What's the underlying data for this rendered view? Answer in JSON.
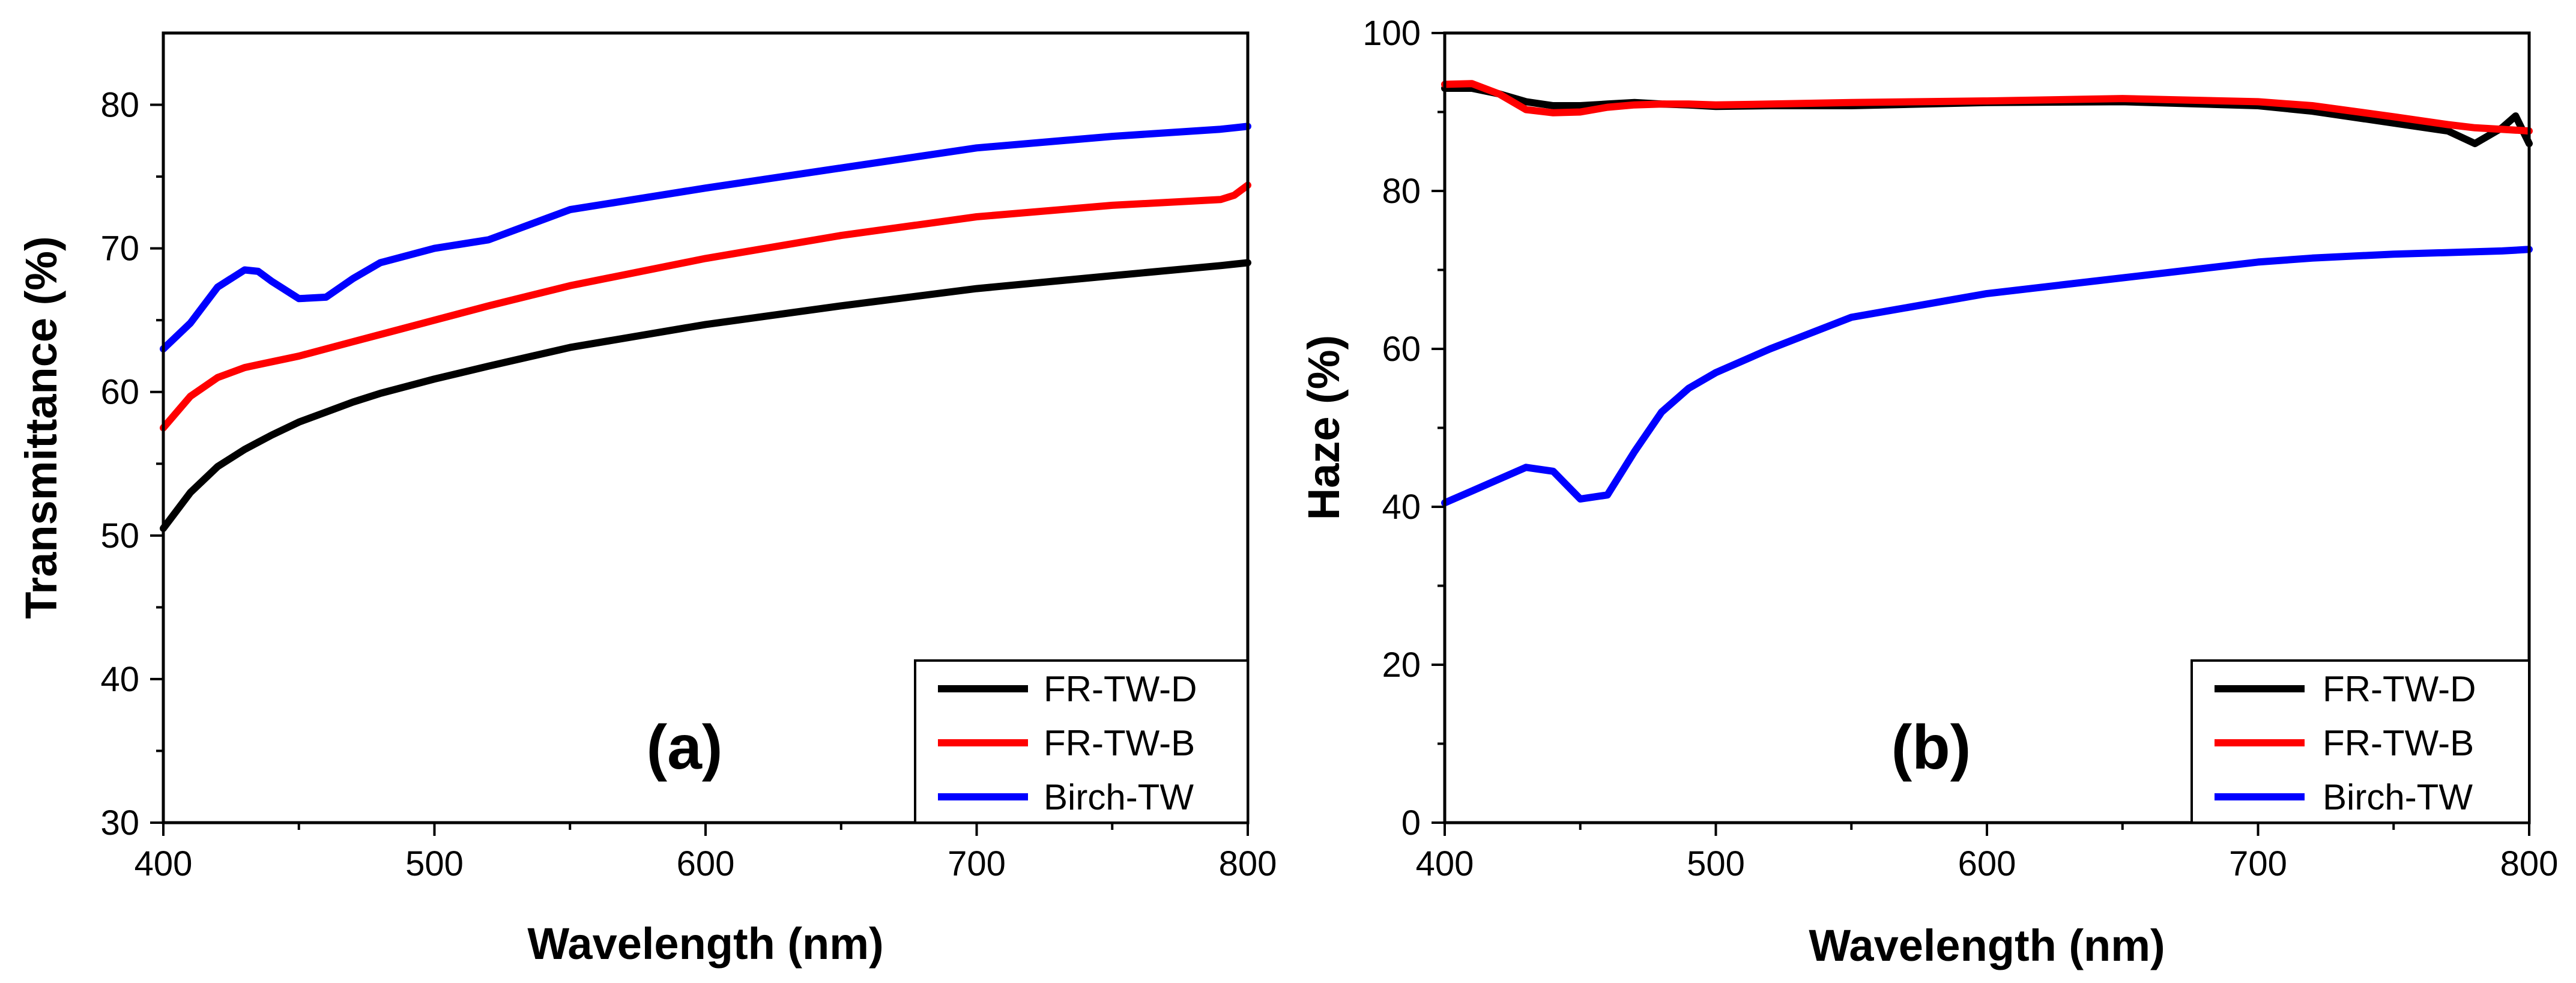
{
  "colors": {
    "FR-TW-D": "#000000",
    "FR-TW-B": "#ff0000",
    "Birch-TW": "#0000ff"
  },
  "chart_data": [
    {
      "type": "line",
      "panel_label": "(a)",
      "title": "",
      "xlabel": "Wavelength (nm)",
      "ylabel": "Transmittance (%)",
      "xlim": [
        400,
        800
      ],
      "ylim": [
        30,
        85
      ],
      "xticks": [
        400,
        500,
        600,
        700,
        800
      ],
      "yticks": [
        30,
        40,
        50,
        60,
        70,
        80
      ],
      "grid": false,
      "legend_position": "bottom-right",
      "x": [
        400,
        410,
        420,
        430,
        435,
        440,
        450,
        460,
        470,
        480,
        500,
        520,
        550,
        600,
        650,
        700,
        750,
        790,
        795,
        800
      ],
      "series": [
        {
          "name": "FR-TW-D",
          "values": [
            50.5,
            53.0,
            54.8,
            56.0,
            56.5,
            57.0,
            57.9,
            58.6,
            59.3,
            59.9,
            60.9,
            61.8,
            63.1,
            64.7,
            66.0,
            67.2,
            68.1,
            68.8,
            68.9,
            69.0
          ]
        },
        {
          "name": "FR-TW-B",
          "values": [
            57.5,
            59.7,
            61.0,
            61.7,
            61.9,
            62.1,
            62.5,
            63.0,
            63.5,
            64.0,
            65.0,
            66.0,
            67.4,
            69.3,
            70.9,
            72.2,
            73.0,
            73.4,
            73.7,
            74.4
          ]
        },
        {
          "name": "Birch-TW",
          "values": [
            63.0,
            64.8,
            67.3,
            68.5,
            68.4,
            67.7,
            66.5,
            66.6,
            67.9,
            69.0,
            70.0,
            70.6,
            72.7,
            74.2,
            75.6,
            77.0,
            77.8,
            78.3,
            78.4,
            78.5
          ]
        }
      ]
    },
    {
      "type": "line",
      "panel_label": "(b)",
      "title": "",
      "xlabel": "Wavelength (nm)",
      "ylabel": "Haze (%)",
      "xlim": [
        400,
        800
      ],
      "ylim": [
        0,
        100
      ],
      "xticks": [
        400,
        500,
        600,
        700,
        800
      ],
      "yticks": [
        0,
        20,
        40,
        60,
        80,
        100
      ],
      "grid": false,
      "legend_position": "bottom-right",
      "x": [
        400,
        410,
        420,
        430,
        440,
        450,
        460,
        470,
        480,
        490,
        500,
        520,
        550,
        600,
        650,
        700,
        720,
        750,
        770,
        780,
        790,
        795,
        800
      ],
      "series": [
        {
          "name": "FR-TW-D",
          "values": [
            93.0,
            93.0,
            92.3,
            91.3,
            90.8,
            90.8,
            91.0,
            91.2,
            91.0,
            90.9,
            90.7,
            90.8,
            90.8,
            91.2,
            91.3,
            90.8,
            90.1,
            88.6,
            87.6,
            86.0,
            88.0,
            89.5,
            86.0
          ]
        },
        {
          "name": "FR-TW-B",
          "values": [
            93.5,
            93.6,
            92.3,
            90.3,
            89.9,
            90.0,
            90.6,
            90.9,
            91.0,
            91.0,
            90.9,
            91.0,
            91.2,
            91.4,
            91.7,
            91.3,
            90.8,
            89.4,
            88.4,
            88.0,
            87.8,
            87.7,
            87.6
          ]
        },
        {
          "name": "Birch-TW",
          "values": [
            40.5,
            42.0,
            43.5,
            45.0,
            44.5,
            41.0,
            41.5,
            47.0,
            52.0,
            55.0,
            57.0,
            60.0,
            64.0,
            67.0,
            69.0,
            71.0,
            71.5,
            72.0,
            72.2,
            72.3,
            72.4,
            72.5,
            72.6
          ]
        }
      ]
    }
  ]
}
